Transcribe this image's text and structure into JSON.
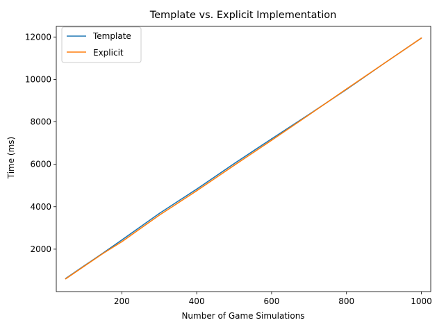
{
  "chart_data": {
    "type": "line",
    "title": "Template vs. Explicit Implementation",
    "xlabel": "Number of Game Simulations",
    "ylabel": "Time (ms)",
    "xlim": [
      25,
      1025
    ],
    "ylim": [
      0,
      12500
    ],
    "xticks": [
      200,
      400,
      600,
      800,
      1000
    ],
    "yticks": [
      2000,
      4000,
      6000,
      8000,
      10000,
      12000
    ],
    "grid": false,
    "legend_position": "top-left",
    "series": [
      {
        "name": "Template",
        "color": "#1f77b4",
        "x": [
          50,
          100,
          150,
          200,
          300,
          400,
          500,
          600,
          700,
          800,
          900,
          1000
        ],
        "y": [
          620,
          1220,
          1820,
          2430,
          3680,
          4830,
          6030,
          7200,
          8350,
          9530,
          10750,
          11950
        ]
      },
      {
        "name": "Explicit",
        "color": "#ff7f0e",
        "x": [
          50,
          100,
          150,
          200,
          300,
          400,
          500,
          600,
          700,
          800,
          900,
          1000
        ],
        "y": [
          600,
          1200,
          1800,
          2350,
          3600,
          4750,
          5950,
          7130,
          8330,
          9550,
          10750,
          11950
        ]
      }
    ]
  }
}
